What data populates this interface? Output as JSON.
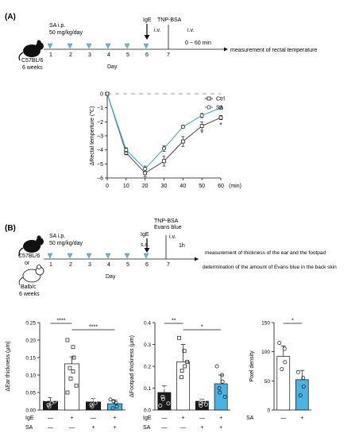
{
  "panelA": {
    "label": "(A)",
    "mouse": "C57BL/6\n6 weeks",
    "sa_text": "SA i.p.\n50 mg/kg/day",
    "ige": "IgE\ni.v.",
    "tnp": "TNP-BSA\ni.v.",
    "window": "0 ~ 60 min",
    "measurement": "measurement of rectal temperature",
    "days": [
      "1",
      "2",
      "3",
      "4",
      "5",
      "6",
      "7"
    ],
    "day_label": "Day"
  },
  "panelB": {
    "label": "(B)",
    "mouse1": "C57BL/6",
    "or": "or",
    "mouse2": "Balb/c\n6 weeks",
    "sa_text": "SA i.p.\n50 mg/kg/day",
    "ige": "IgE\ns.c.",
    "tnp": "TNP-BSA\nEvans blue\ni.v.\n1h",
    "measure1": "measurement of thickness of the ear and the footpad",
    "measure2": "determination of the amount of Evans blue in the back skin",
    "days": [
      "1",
      "2",
      "3",
      "4",
      "5",
      "6",
      "7"
    ],
    "day_label": "Day"
  },
  "colors": {
    "ctrl": "#555555",
    "sa": "#3fa9dd",
    "bar_black": "#1a1a1a",
    "bar_blue": "#49b3e3",
    "arrowhead": "#5fb7e0"
  },
  "chart_data": [
    {
      "type": "line",
      "title": "",
      "xlabel": "(min)",
      "ylabel": "ΔRectal temperture (℃)",
      "x": [
        0,
        10,
        20,
        30,
        40,
        50,
        60
      ],
      "xlim": [
        0,
        60
      ],
      "ylim": [
        -6,
        0
      ],
      "yticks": [
        0,
        -1,
        -2,
        -3,
        -4,
        -5,
        -6
      ],
      "legend_position": "top-right",
      "series": [
        {
          "name": "Ctrl",
          "values": [
            0,
            -4.2,
            -5.65,
            -4.8,
            -3.4,
            -2.3,
            -1.7
          ],
          "err": [
            0,
            0.15,
            0.25,
            0.35,
            0.35,
            0.3,
            0.15
          ]
        },
        {
          "name": "SA",
          "values": [
            0,
            -4.0,
            -5.35,
            -3.9,
            -2.35,
            -1.55,
            -1.0
          ],
          "err": [
            0,
            0.15,
            0.2,
            0.2,
            0.1,
            0.15,
            0.1
          ]
        }
      ],
      "significance": [
        {
          "x": 50,
          "label": "*"
        },
        {
          "x": 60,
          "label": "*"
        }
      ]
    },
    {
      "type": "bar",
      "ylabel": "ΔEar thickness (μm)",
      "ylim": [
        0,
        0.25
      ],
      "yticks": [
        "0.00",
        "0.05",
        "0.10",
        "0.15",
        "0.20",
        "0.25"
      ],
      "values": [
        0.025,
        0.132,
        0.023,
        0.018
      ],
      "err": [
        0.01,
        0.02,
        0.01,
        0.01
      ],
      "row_labels": [
        "IgE",
        "SA"
      ],
      "ige_signs": [
        "—",
        "+",
        "—",
        "+"
      ],
      "sa_signs": [
        "—",
        "—",
        "+",
        "+"
      ],
      "fills": [
        "black",
        "white",
        "black",
        "blue"
      ],
      "points": [
        [
          0.03,
          0.02,
          0.04,
          0.015,
          0.01,
          0.025,
          0.035
        ],
        [
          0.2,
          0.18,
          0.15,
          0.12,
          0.09,
          0.07,
          0.05,
          0.11
        ],
        [
          0.04,
          0.03,
          0.02,
          0.015,
          0.01,
          0.03
        ],
        [
          0.03,
          0.02,
          0.01,
          0.005,
          0.025
        ]
      ],
      "brackets": [
        {
          "from": 0,
          "to": 1,
          "label": "****"
        },
        {
          "from": 1,
          "to": 3,
          "label": "****"
        }
      ]
    },
    {
      "type": "bar",
      "ylabel": "ΔFootpad thickness (μm)",
      "ylim": [
        0,
        0.4
      ],
      "yticks": [
        "0.0",
        "0.1",
        "0.2",
        "0.3",
        "0.4"
      ],
      "values": [
        0.08,
        0.22,
        0.04,
        0.12
      ],
      "err": [
        0.03,
        0.08,
        0.01,
        0.04
      ],
      "row_labels": [
        "IgE",
        "SA"
      ],
      "ige_signs": [
        "—",
        "+",
        "—",
        "+"
      ],
      "sa_signs": [
        "—",
        "—",
        "+",
        "+"
      ],
      "fills": [
        "black",
        "white",
        "black",
        "blue"
      ],
      "points": [
        [
          0.14,
          0.12,
          0.1,
          0.06,
          0.05,
          0.03,
          0.02
        ],
        [
          0.33,
          0.27,
          0.2,
          0.15,
          0.18,
          0.22
        ],
        [
          0.06,
          0.05,
          0.04,
          0.03,
          0.02,
          0.025
        ],
        [
          0.2,
          0.16,
          0.13,
          0.1,
          0.08,
          0.06
        ]
      ],
      "brackets": [
        {
          "from": 0,
          "to": 1,
          "label": "**"
        },
        {
          "from": 1,
          "to": 3,
          "label": "*"
        }
      ]
    },
    {
      "type": "bar",
      "ylabel": "Pixel density",
      "ylim": [
        0,
        150
      ],
      "yticks": [
        "0",
        "50",
        "100",
        "150"
      ],
      "values": [
        92,
        52
      ],
      "err": [
        18,
        16
      ],
      "row_labels": [
        "SA"
      ],
      "sa_signs": [
        "—",
        "+"
      ],
      "fills": [
        "white",
        "blue"
      ],
      "points": [
        [
          115,
          105,
          82,
          70
        ],
        [
          65,
          55,
          40,
          25
        ]
      ],
      "brackets": [
        {
          "from": 0,
          "to": 1,
          "label": "*"
        }
      ]
    }
  ]
}
